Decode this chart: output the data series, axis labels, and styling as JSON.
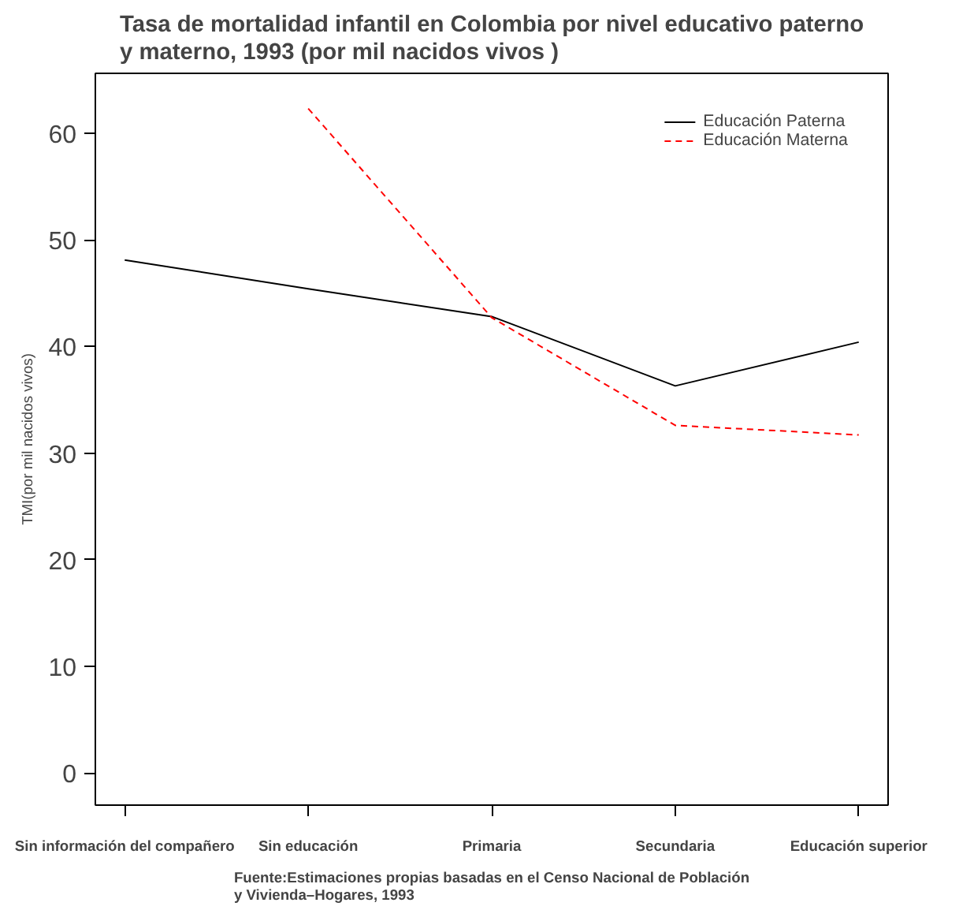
{
  "chart_data": {
    "type": "line",
    "title": "Tasa de mortalidad infantil en Colombia por nivel educativo paterno\ny materno, 1993 (por mil nacidos vivos )",
    "ylabel": "TMI(por mil nacidos vivos)",
    "categories": [
      "Sin información del compañero",
      "Sin educación",
      "Primaria",
      "Secundaria",
      "Educación superior"
    ],
    "series": [
      {
        "name": "Educación Paterna",
        "color": "#000000",
        "line_style": "solid",
        "values": [
          48.1,
          45.4,
          42.8,
          36.3,
          40.4
        ]
      },
      {
        "name": "Educación Materna",
        "color": "#ff0000",
        "line_style": "dashed",
        "values": [
          null,
          62.3,
          42.7,
          32.6,
          31.7
        ]
      }
    ],
    "ylim": [
      -3,
      65.6
    ],
    "yticks": [
      0,
      10,
      20,
      30,
      40,
      50,
      60
    ],
    "grid": false,
    "legend": "top right",
    "annotations": [
      "Fuente:Estimaciones propias basadas en el Censo Nacional de Población\ny Vivienda–Hogares, 1993"
    ]
  }
}
